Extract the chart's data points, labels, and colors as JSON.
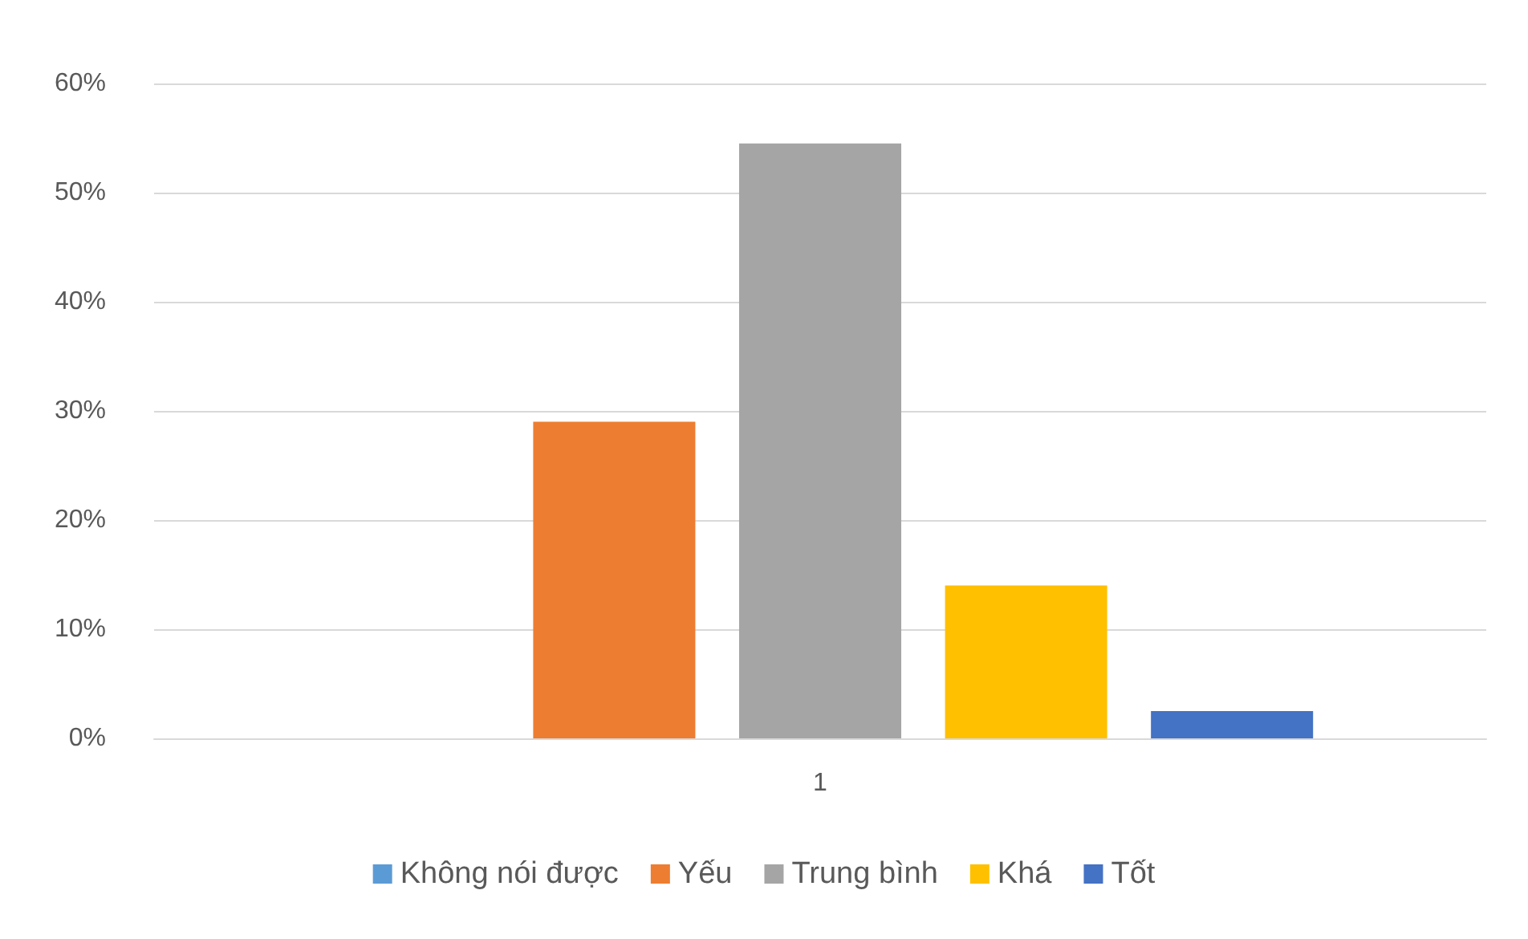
{
  "chart_data": {
    "type": "bar",
    "categories": [
      "1"
    ],
    "series": [
      {
        "name": "Không nói được",
        "color": "#5b9bd5",
        "values": [
          0
        ]
      },
      {
        "name": "Yếu",
        "color": "#ed7d31",
        "values": [
          29
        ]
      },
      {
        "name": "Trung bình",
        "color": "#a5a5a5",
        "values": [
          54.5
        ]
      },
      {
        "name": "Khá",
        "color": "#ffc000",
        "values": [
          14
        ]
      },
      {
        "name": "Tốt",
        "color": "#4472c4",
        "values": [
          2.5
        ]
      }
    ],
    "ylim": [
      0,
      60
    ],
    "yticks": [
      {
        "value": 0,
        "label": "0%"
      },
      {
        "value": 10,
        "label": "10%"
      },
      {
        "value": 20,
        "label": "20%"
      },
      {
        "value": 30,
        "label": "30%"
      },
      {
        "value": 40,
        "label": "40%"
      },
      {
        "value": 50,
        "label": "50%"
      },
      {
        "value": 60,
        "label": "60%"
      }
    ],
    "grid": "y",
    "legend": "bottom"
  }
}
